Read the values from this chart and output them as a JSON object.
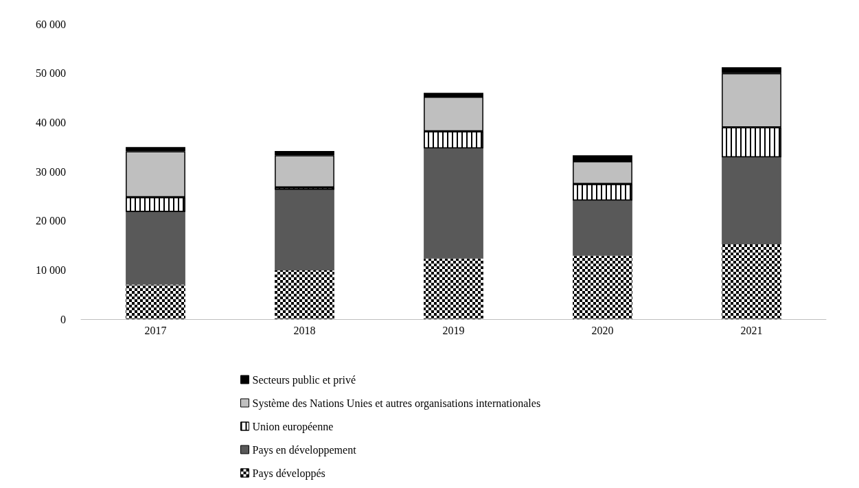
{
  "chart_data": {
    "type": "bar",
    "stacked": true,
    "categories": [
      "2017",
      "2018",
      "2019",
      "2020",
      "2021"
    ],
    "series": [
      {
        "name": "Pays développés",
        "color": "#000000",
        "values": [
          7000,
          9900,
          12300,
          12900,
          15200
        ]
      },
      {
        "name": "Pays en développement",
        "color": "#595959",
        "values": [
          14800,
          16400,
          22400,
          11200,
          17700
        ]
      },
      {
        "name": "Union européenne",
        "color": "#ffffff",
        "values": [
          3000,
          500,
          3500,
          3400,
          6100
        ]
      },
      {
        "name": "Système des Nations Unies et autres organisations internationales",
        "color": "#bfbfbf",
        "values": [
          9300,
          6500,
          7000,
          4600,
          11000
        ]
      },
      {
        "name": "Secteurs public et privé",
        "color": "#000000",
        "values": [
          900,
          900,
          800,
          1200,
          1200
        ]
      }
    ],
    "ylim": [
      0,
      60000
    ],
    "yticks": [
      {
        "value": 0,
        "label": "0"
      },
      {
        "value": 10000,
        "label": "10 000"
      },
      {
        "value": 20000,
        "label": "20 000"
      },
      {
        "value": 30000,
        "label": "30 000"
      },
      {
        "value": 40000,
        "label": "40 000"
      },
      {
        "value": 50000,
        "label": "50 000"
      },
      {
        "value": 60000,
        "label": "60 000"
      }
    ],
    "grid": false,
    "legend": "bottom"
  }
}
